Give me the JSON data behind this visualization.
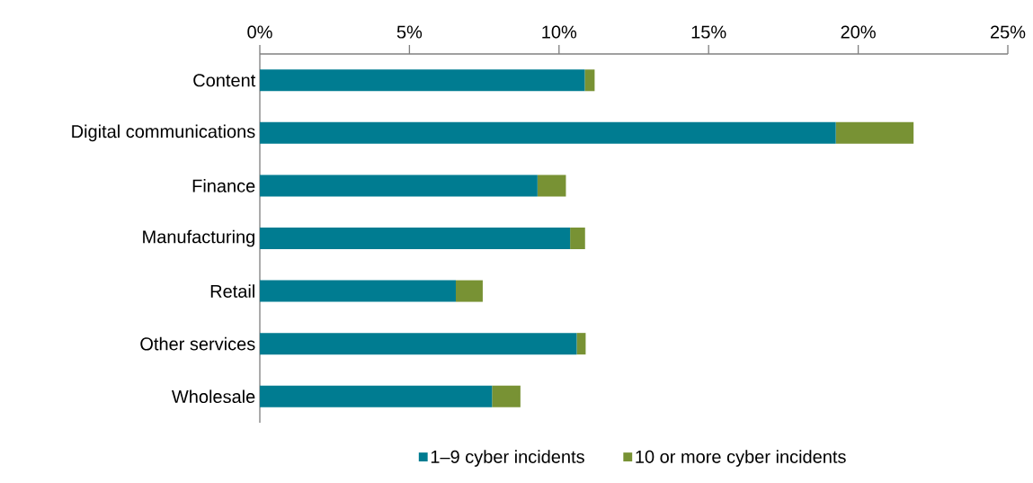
{
  "chart_data": {
    "type": "bar",
    "orientation": "horizontal",
    "stacked": true,
    "categories": [
      "Content",
      "Digital communications",
      "Finance",
      "Manufacturing",
      "Retail",
      "Other services",
      "Wholesale"
    ],
    "series": [
      {
        "name": "1–9 cyber incidents",
        "color": "#007c91",
        "values": [
          10.86,
          19.25,
          9.28,
          10.37,
          6.55,
          10.59,
          7.76
        ]
      },
      {
        "name": "10 or more cyber incidents",
        "color": "#789234",
        "values": [
          0.33,
          2.6,
          0.95,
          0.5,
          0.9,
          0.3,
          0.95
        ]
      }
    ],
    "xlim": [
      0,
      25
    ],
    "xticks": [
      {
        "value": 0,
        "label": "0%"
      },
      {
        "value": 5,
        "label": "5%"
      },
      {
        "value": 10,
        "label": "10%"
      },
      {
        "value": 15,
        "label": "15%"
      },
      {
        "value": 20,
        "label": "20%"
      },
      {
        "value": 25,
        "label": "25%"
      }
    ],
    "grid": false,
    "legend": "bottom"
  }
}
